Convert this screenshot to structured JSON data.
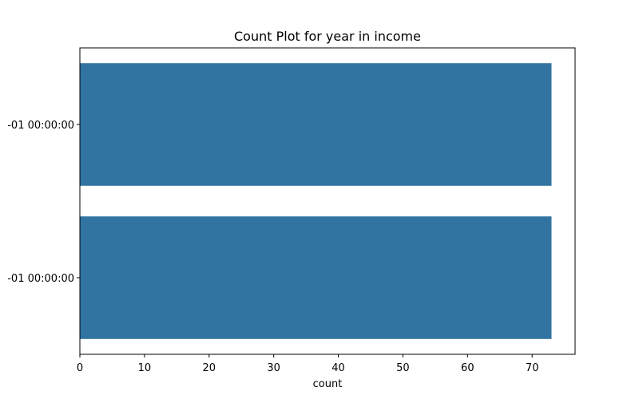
{
  "chart_data": {
    "type": "bar",
    "orientation": "horizontal",
    "title": "Count Plot for year in income",
    "xlabel": "count",
    "ylabel": "",
    "categories": [
      "-01 00:00:00",
      "-01 00:00:00"
    ],
    "values": [
      73,
      73
    ],
    "xlim": [
      0,
      76.65
    ],
    "xticks": [
      0,
      10,
      20,
      30,
      40,
      50,
      60,
      70
    ],
    "bar_color": "#3274a1",
    "grid": false,
    "legend": "none"
  }
}
